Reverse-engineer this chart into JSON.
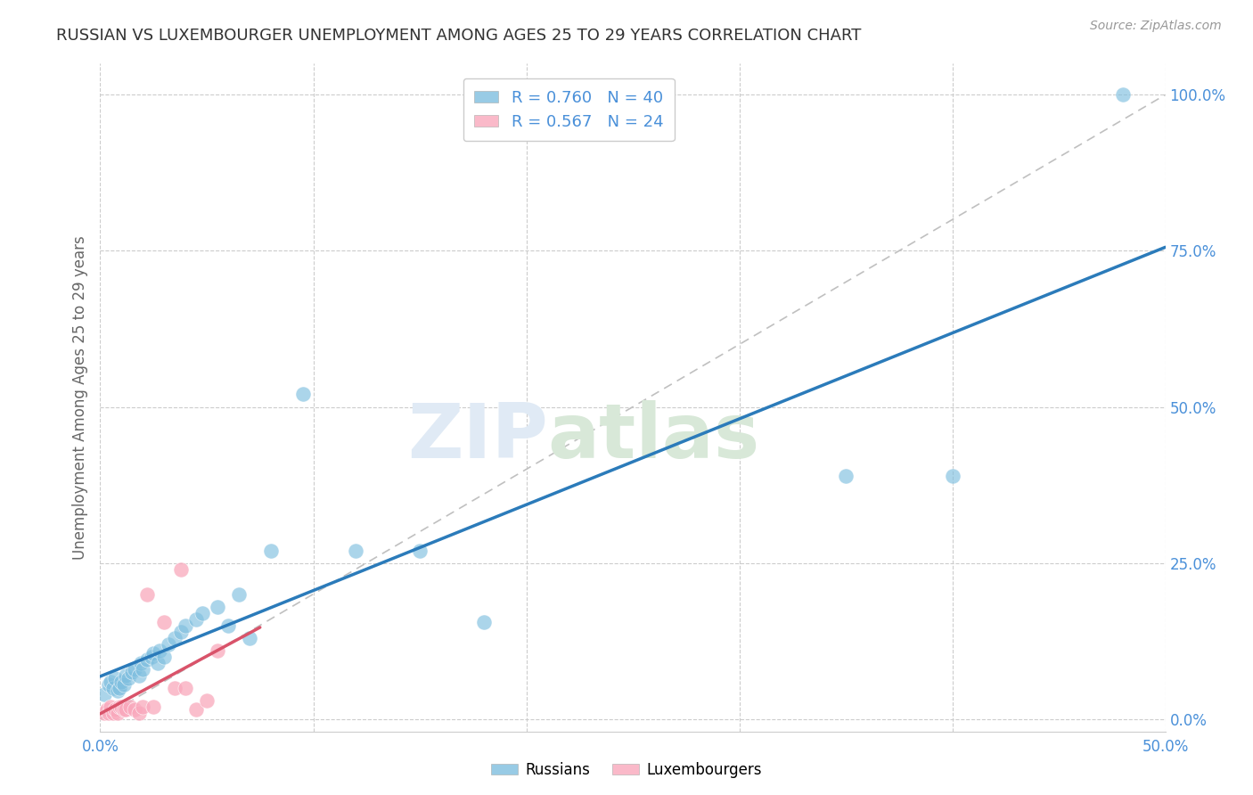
{
  "title": "RUSSIAN VS LUXEMBOURGER UNEMPLOYMENT AMONG AGES 25 TO 29 YEARS CORRELATION CHART",
  "source": "Source: ZipAtlas.com",
  "ylabel": "Unemployment Among Ages 25 to 29 years",
  "xlim": [
    0.0,
    0.5
  ],
  "ylim": [
    -0.02,
    1.05
  ],
  "xticks": [
    0.0,
    0.1,
    0.2,
    0.3,
    0.4,
    0.5
  ],
  "xticklabels": [
    "0.0%",
    "",
    "",
    "",
    "",
    "50.0%"
  ],
  "yticks_right": [
    0.0,
    0.25,
    0.5,
    0.75,
    1.0
  ],
  "yticklabels_right": [
    "0.0%",
    "25.0%",
    "50.0%",
    "75.0%",
    "100.0%"
  ],
  "background_color": "#ffffff",
  "grid_color": "#cccccc",
  "watermark_line1": "ZIP",
  "watermark_line2": "atlas",
  "legend_r_russian": "R = 0.760",
  "legend_n_russian": "N = 40",
  "legend_r_lux": "R = 0.567",
  "legend_n_lux": "N = 24",
  "russian_color": "#7fbfdf",
  "lux_color": "#f9a8bc",
  "russian_line_color": "#2b7bba",
  "lux_line_color": "#d9536a",
  "diagonal_color": "#c0c0c0",
  "title_color": "#333333",
  "axis_label_color": "#4a90d9",
  "russians_x": [
    0.002,
    0.004,
    0.005,
    0.006,
    0.007,
    0.008,
    0.009,
    0.01,
    0.011,
    0.012,
    0.013,
    0.015,
    0.016,
    0.018,
    0.019,
    0.02,
    0.022,
    0.024,
    0.025,
    0.027,
    0.028,
    0.03,
    0.032,
    0.035,
    0.038,
    0.04,
    0.045,
    0.048,
    0.055,
    0.06,
    0.065,
    0.07,
    0.08,
    0.095,
    0.12,
    0.15,
    0.18,
    0.35,
    0.4,
    0.48
  ],
  "russians_y": [
    0.04,
    0.055,
    0.06,
    0.05,
    0.065,
    0.045,
    0.05,
    0.06,
    0.055,
    0.07,
    0.065,
    0.075,
    0.08,
    0.07,
    0.09,
    0.08,
    0.095,
    0.1,
    0.105,
    0.09,
    0.11,
    0.1,
    0.12,
    0.13,
    0.14,
    0.15,
    0.16,
    0.17,
    0.18,
    0.15,
    0.2,
    0.13,
    0.27,
    0.52,
    0.27,
    0.27,
    0.155,
    0.39,
    0.39,
    1.0
  ],
  "lux_x": [
    0.002,
    0.003,
    0.004,
    0.005,
    0.006,
    0.007,
    0.008,
    0.009,
    0.01,
    0.011,
    0.012,
    0.014,
    0.016,
    0.018,
    0.02,
    0.022,
    0.025,
    0.03,
    0.035,
    0.038,
    0.04,
    0.045,
    0.05,
    0.055
  ],
  "lux_y": [
    0.01,
    0.015,
    0.01,
    0.02,
    0.01,
    0.015,
    0.01,
    0.02,
    0.02,
    0.015,
    0.015,
    0.02,
    0.015,
    0.01,
    0.02,
    0.2,
    0.02,
    0.155,
    0.05,
    0.24,
    0.05,
    0.015,
    0.03,
    0.11
  ]
}
